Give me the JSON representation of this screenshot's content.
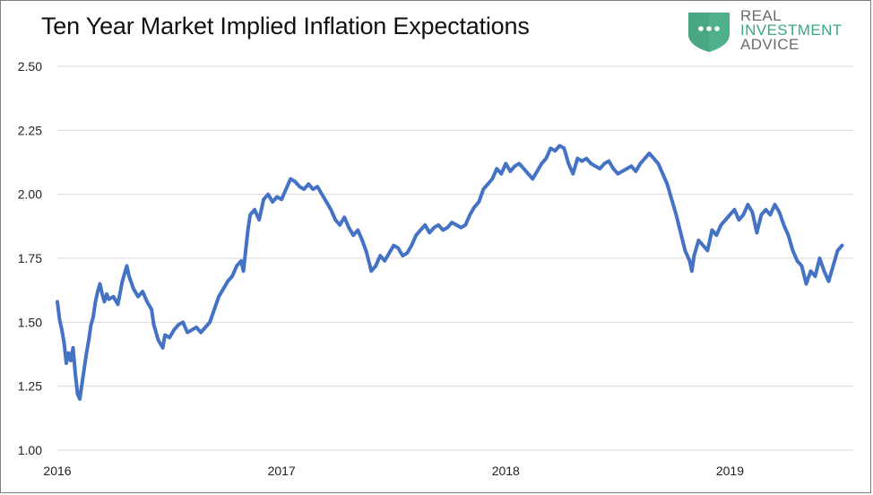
{
  "title": "Ten Year Market Implied Inflation Expectations",
  "logo": {
    "icon": "speech-bubble-shield-icon",
    "line1": "REAL",
    "line2": "INVESTMENT",
    "line3": "ADVICE",
    "color": "#46b08a"
  },
  "colors": {
    "series": "#4472c4",
    "grid": "#d9d9d9"
  },
  "chart_data": {
    "type": "line",
    "title": "Ten Year Market Implied Inflation Expectations",
    "xlabel": "",
    "ylabel": "",
    "ylim": [
      1.0,
      2.5
    ],
    "xlim": [
      2016.0,
      2019.55
    ],
    "y_ticks": [
      "1.00",
      "1.25",
      "1.50",
      "1.75",
      "2.00",
      "2.25",
      "2.50"
    ],
    "x_ticks": [
      "2016",
      "2017",
      "2018",
      "2019"
    ],
    "grid": true,
    "legend": "none",
    "series": [
      {
        "values": [
          [
            2016.0,
            1.58
          ],
          [
            2016.01,
            1.51
          ],
          [
            2016.02,
            1.47
          ],
          [
            2016.03,
            1.42
          ],
          [
            2016.04,
            1.34
          ],
          [
            2016.05,
            1.38
          ],
          [
            2016.06,
            1.35
          ],
          [
            2016.07,
            1.4
          ],
          [
            2016.08,
            1.3
          ],
          [
            2016.09,
            1.22
          ],
          [
            2016.1,
            1.2
          ],
          [
            2016.11,
            1.26
          ],
          [
            2016.12,
            1.32
          ],
          [
            2016.13,
            1.38
          ],
          [
            2016.14,
            1.43
          ],
          [
            2016.15,
            1.49
          ],
          [
            2016.16,
            1.52
          ],
          [
            2016.17,
            1.58
          ],
          [
            2016.18,
            1.62
          ],
          [
            2016.19,
            1.65
          ],
          [
            2016.2,
            1.61
          ],
          [
            2016.21,
            1.58
          ],
          [
            2016.22,
            1.61
          ],
          [
            2016.23,
            1.59
          ],
          [
            2016.25,
            1.6
          ],
          [
            2016.27,
            1.57
          ],
          [
            2016.29,
            1.66
          ],
          [
            2016.31,
            1.72
          ],
          [
            2016.32,
            1.68
          ],
          [
            2016.34,
            1.63
          ],
          [
            2016.36,
            1.6
          ],
          [
            2016.38,
            1.62
          ],
          [
            2016.4,
            1.58
          ],
          [
            2016.42,
            1.55
          ],
          [
            2016.43,
            1.49
          ],
          [
            2016.45,
            1.43
          ],
          [
            2016.47,
            1.4
          ],
          [
            2016.48,
            1.45
          ],
          [
            2016.5,
            1.44
          ],
          [
            2016.52,
            1.47
          ],
          [
            2016.54,
            1.49
          ],
          [
            2016.56,
            1.5
          ],
          [
            2016.58,
            1.46
          ],
          [
            2016.6,
            1.47
          ],
          [
            2016.62,
            1.48
          ],
          [
            2016.64,
            1.46
          ],
          [
            2016.66,
            1.48
          ],
          [
            2016.68,
            1.5
          ],
          [
            2016.7,
            1.55
          ],
          [
            2016.72,
            1.6
          ],
          [
            2016.74,
            1.63
          ],
          [
            2016.76,
            1.66
          ],
          [
            2016.78,
            1.68
          ],
          [
            2016.8,
            1.72
          ],
          [
            2016.82,
            1.74
          ],
          [
            2016.83,
            1.7
          ],
          [
            2016.84,
            1.78
          ],
          [
            2016.85,
            1.86
          ],
          [
            2016.86,
            1.92
          ],
          [
            2016.88,
            1.94
          ],
          [
            2016.9,
            1.9
          ],
          [
            2016.92,
            1.98
          ],
          [
            2016.94,
            2.0
          ],
          [
            2016.96,
            1.97
          ],
          [
            2016.98,
            1.99
          ],
          [
            2017.0,
            1.98
          ],
          [
            2017.02,
            2.02
          ],
          [
            2017.04,
            2.06
          ],
          [
            2017.06,
            2.05
          ],
          [
            2017.08,
            2.03
          ],
          [
            2017.1,
            2.02
          ],
          [
            2017.12,
            2.04
          ],
          [
            2017.14,
            2.02
          ],
          [
            2017.16,
            2.03
          ],
          [
            2017.18,
            2.0
          ],
          [
            2017.2,
            1.97
          ],
          [
            2017.22,
            1.94
          ],
          [
            2017.24,
            1.9
          ],
          [
            2017.26,
            1.88
          ],
          [
            2017.28,
            1.91
          ],
          [
            2017.3,
            1.87
          ],
          [
            2017.32,
            1.84
          ],
          [
            2017.34,
            1.86
          ],
          [
            2017.36,
            1.82
          ],
          [
            2017.38,
            1.77
          ],
          [
            2017.4,
            1.7
          ],
          [
            2017.42,
            1.72
          ],
          [
            2017.44,
            1.76
          ],
          [
            2017.46,
            1.74
          ],
          [
            2017.48,
            1.77
          ],
          [
            2017.5,
            1.8
          ],
          [
            2017.52,
            1.79
          ],
          [
            2017.54,
            1.76
          ],
          [
            2017.56,
            1.77
          ],
          [
            2017.58,
            1.8
          ],
          [
            2017.6,
            1.84
          ],
          [
            2017.62,
            1.86
          ],
          [
            2017.64,
            1.88
          ],
          [
            2017.66,
            1.85
          ],
          [
            2017.68,
            1.87
          ],
          [
            2017.7,
            1.88
          ],
          [
            2017.72,
            1.86
          ],
          [
            2017.74,
            1.87
          ],
          [
            2017.76,
            1.89
          ],
          [
            2017.78,
            1.88
          ],
          [
            2017.8,
            1.87
          ],
          [
            2017.82,
            1.88
          ],
          [
            2017.84,
            1.92
          ],
          [
            2017.86,
            1.95
          ],
          [
            2017.88,
            1.97
          ],
          [
            2017.9,
            2.02
          ],
          [
            2017.92,
            2.04
          ],
          [
            2017.94,
            2.06
          ],
          [
            2017.96,
            2.1
          ],
          [
            2017.98,
            2.08
          ],
          [
            2018.0,
            2.12
          ],
          [
            2018.02,
            2.09
          ],
          [
            2018.04,
            2.11
          ],
          [
            2018.06,
            2.12
          ],
          [
            2018.08,
            2.1
          ],
          [
            2018.1,
            2.08
          ],
          [
            2018.12,
            2.06
          ],
          [
            2018.14,
            2.09
          ],
          [
            2018.16,
            2.12
          ],
          [
            2018.18,
            2.14
          ],
          [
            2018.2,
            2.18
          ],
          [
            2018.22,
            2.17
          ],
          [
            2018.24,
            2.19
          ],
          [
            2018.26,
            2.18
          ],
          [
            2018.28,
            2.12
          ],
          [
            2018.3,
            2.08
          ],
          [
            2018.32,
            2.14
          ],
          [
            2018.34,
            2.13
          ],
          [
            2018.36,
            2.14
          ],
          [
            2018.38,
            2.12
          ],
          [
            2018.4,
            2.11
          ],
          [
            2018.42,
            2.1
          ],
          [
            2018.44,
            2.12
          ],
          [
            2018.46,
            2.13
          ],
          [
            2018.48,
            2.1
          ],
          [
            2018.5,
            2.08
          ],
          [
            2018.52,
            2.09
          ],
          [
            2018.54,
            2.1
          ],
          [
            2018.56,
            2.11
          ],
          [
            2018.58,
            2.09
          ],
          [
            2018.6,
            2.12
          ],
          [
            2018.62,
            2.14
          ],
          [
            2018.64,
            2.16
          ],
          [
            2018.66,
            2.14
          ],
          [
            2018.68,
            2.12
          ],
          [
            2018.7,
            2.08
          ],
          [
            2018.72,
            2.04
          ],
          [
            2018.74,
            1.98
          ],
          [
            2018.76,
            1.92
          ],
          [
            2018.78,
            1.85
          ],
          [
            2018.8,
            1.78
          ],
          [
            2018.82,
            1.74
          ],
          [
            2018.83,
            1.7
          ],
          [
            2018.84,
            1.76
          ],
          [
            2018.86,
            1.82
          ],
          [
            2018.88,
            1.8
          ],
          [
            2018.9,
            1.78
          ],
          [
            2018.92,
            1.86
          ],
          [
            2018.94,
            1.84
          ],
          [
            2018.96,
            1.88
          ],
          [
            2018.98,
            1.9
          ],
          [
            2019.0,
            1.92
          ],
          [
            2019.02,
            1.94
          ],
          [
            2019.04,
            1.9
          ],
          [
            2019.06,
            1.92
          ],
          [
            2019.08,
            1.96
          ],
          [
            2019.1,
            1.93
          ],
          [
            2019.12,
            1.85
          ],
          [
            2019.14,
            1.92
          ],
          [
            2019.16,
            1.94
          ],
          [
            2019.18,
            1.92
          ],
          [
            2019.2,
            1.96
          ],
          [
            2019.22,
            1.93
          ],
          [
            2019.24,
            1.88
          ],
          [
            2019.26,
            1.84
          ],
          [
            2019.28,
            1.78
          ],
          [
            2019.3,
            1.74
          ],
          [
            2019.32,
            1.72
          ],
          [
            2019.34,
            1.65
          ],
          [
            2019.36,
            1.7
          ],
          [
            2019.38,
            1.68
          ],
          [
            2019.4,
            1.75
          ],
          [
            2019.42,
            1.7
          ],
          [
            2019.44,
            1.66
          ],
          [
            2019.46,
            1.72
          ],
          [
            2019.48,
            1.78
          ],
          [
            2019.5,
            1.8
          ]
        ]
      }
    ]
  }
}
